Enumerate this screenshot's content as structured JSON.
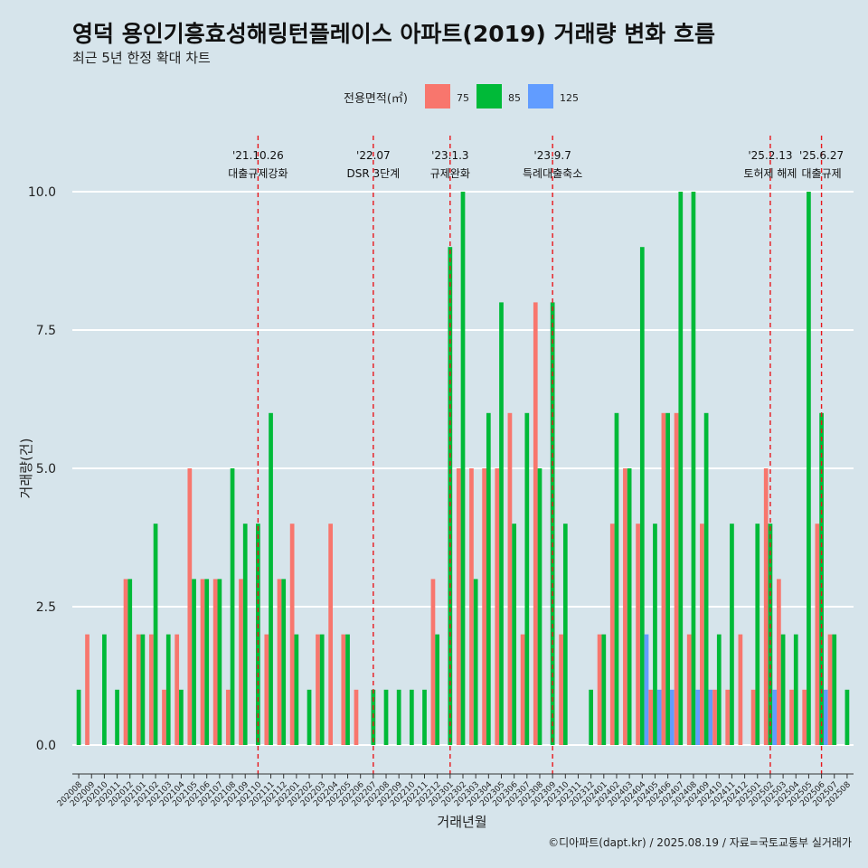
{
  "title": "영덕 용인기흥효성해링턴플레이스 아파트(2019) 거래량 변화 흐름",
  "subtitle": "최근 5년 한정 확대 차트",
  "caption": "©디아파트(dapt.kr) / 2025.08.19 / 자료=국토교통부 실거래가",
  "chart_data": {
    "type": "bar",
    "xlabel": "거래년월",
    "ylabel": "거래량(건)",
    "ylim": [
      0,
      10
    ],
    "yticks": [
      "0.0",
      "2.5",
      "5.0",
      "7.5",
      "10.0"
    ],
    "grid": true,
    "legend": {
      "title": "전용면적(㎡)",
      "position": "top"
    },
    "categories": [
      "202008",
      "202009",
      "202010",
      "202011",
      "202012",
      "202101",
      "202102",
      "202103",
      "202104",
      "202105",
      "202106",
      "202107",
      "202108",
      "202109",
      "202110",
      "202111",
      "202112",
      "202201",
      "202202",
      "202203",
      "202204",
      "202205",
      "202206",
      "202207",
      "202208",
      "202209",
      "202210",
      "202211",
      "202212",
      "202301",
      "202302",
      "202303",
      "202304",
      "202305",
      "202306",
      "202307",
      "202308",
      "202309",
      "202310",
      "202311",
      "202312",
      "202401",
      "202402",
      "202403",
      "202404",
      "202405",
      "202406",
      "202407",
      "202408",
      "202409",
      "202410",
      "202411",
      "202412",
      "202501",
      "202502",
      "202503",
      "202504",
      "202505",
      "202506",
      "202507",
      "202508"
    ],
    "series": [
      {
        "name": "75",
        "color": "#f8766d",
        "values": [
          0,
          2,
          0,
          0,
          3,
          2,
          2,
          1,
          2,
          5,
          3,
          3,
          1,
          3,
          0,
          2,
          3,
          4,
          0,
          2,
          4,
          2,
          1,
          0,
          0,
          0,
          0,
          0,
          3,
          0,
          5,
          5,
          5,
          5,
          6,
          2,
          8,
          0,
          2,
          0,
          0,
          2,
          4,
          5,
          4,
          1,
          6,
          6,
          2,
          4,
          1,
          1,
          2,
          1,
          5,
          3,
          1,
          1,
          4,
          2,
          0
        ]
      },
      {
        "name": "85",
        "color": "#00ba38",
        "values": [
          1,
          0,
          2,
          1,
          3,
          2,
          4,
          2,
          1,
          3,
          3,
          3,
          5,
          4,
          4,
          6,
          3,
          2,
          1,
          2,
          0,
          2,
          0,
          1,
          1,
          1,
          1,
          1,
          2,
          9,
          10,
          3,
          6,
          8,
          4,
          6,
          5,
          8,
          4,
          0,
          1,
          2,
          6,
          5,
          9,
          4,
          6,
          10,
          10,
          6,
          2,
          4,
          0,
          4,
          4,
          2,
          2,
          10,
          6,
          2,
          1
        ]
      },
      {
        "name": "125",
        "color": "#619cff",
        "values": [
          0,
          0,
          0,
          0,
          0,
          0,
          0,
          0,
          0,
          0,
          0,
          0,
          0,
          0,
          0,
          0,
          0,
          0,
          0,
          0,
          0,
          0,
          0,
          0,
          0,
          0,
          0,
          0,
          0,
          0,
          0,
          0,
          0,
          0,
          0,
          0,
          0,
          0,
          0,
          0,
          0,
          0,
          0,
          0,
          2,
          1,
          1,
          0,
          1,
          1,
          0,
          0,
          0,
          0,
          1,
          0,
          0,
          0,
          1,
          0,
          0
        ]
      }
    ],
    "annotations": [
      {
        "date": "'21.10.26",
        "label": "대출규제강화",
        "category": "202110"
      },
      {
        "date": "'22.07",
        "label": "DSR 3단계",
        "category": "202207"
      },
      {
        "date": "'23.1.3",
        "label": "규제완화",
        "category": "202301"
      },
      {
        "date": "'23.9.7",
        "label": "특례대출축소",
        "category": "202309"
      },
      {
        "date": "'25.2.13",
        "label": "토허제 해제",
        "category": "202502"
      },
      {
        "date": "'25.6.27",
        "label": "대출규제",
        "category": "202506"
      }
    ]
  }
}
